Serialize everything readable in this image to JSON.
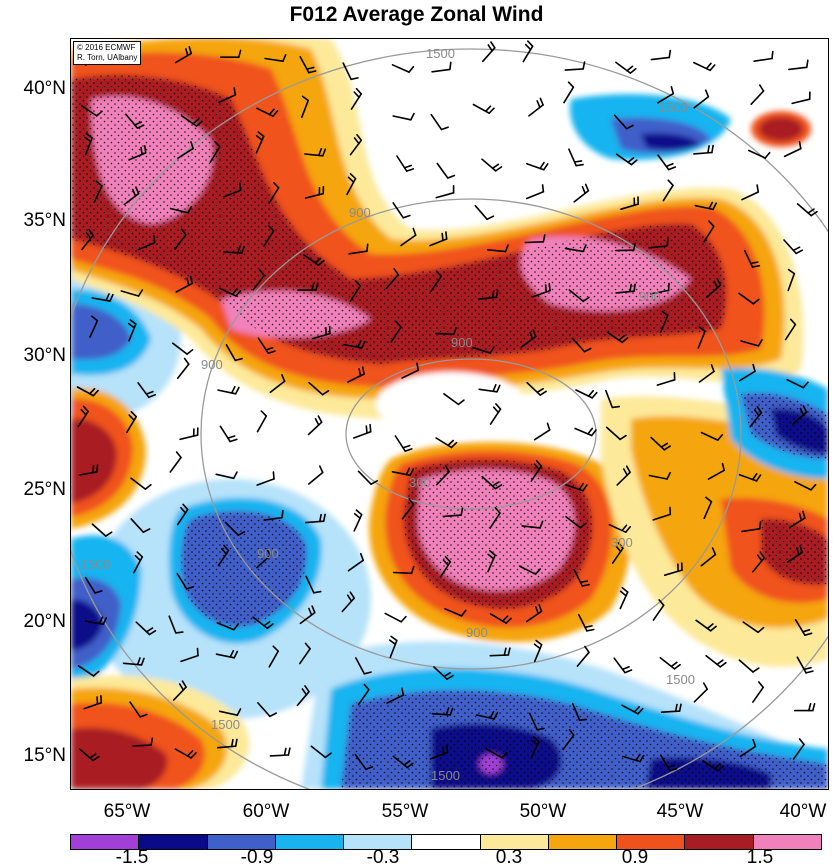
{
  "title": "F012 Average Zonal Wind",
  "credit": {
    "line1": "© 2016 ECMWF",
    "line2": "R. Torn, UAlbany"
  },
  "lat_labels": [
    "40°N",
    "35°N",
    "30°N",
    "25°N",
    "20°N",
    "15°N"
  ],
  "lon_labels": [
    "65°W",
    "60°W",
    "55°W",
    "50°W",
    "45°W",
    "40°W"
  ],
  "colorbar": {
    "colors": [
      "#a23fd6",
      "#0b0b8a",
      "#3f5fc9",
      "#19b4f0",
      "#b6e2fa",
      "#ffffff",
      "#fde99a",
      "#f5a50e",
      "#f0521e",
      "#a81c24",
      "#f081ba"
    ],
    "labels": [
      "-1.5",
      "-0.9",
      "-0.3",
      "0.3",
      "0.9",
      "1.5"
    ]
  },
  "contour_labels": [
    "1500",
    "1500",
    "900",
    "900",
    "900",
    "900",
    "300",
    "300",
    "900",
    "900",
    "1500",
    "1500",
    "1500",
    "1500"
  ],
  "chart_data": {
    "type": "heatmap",
    "title": "F012 Average Zonal Wind",
    "x_range_deg_w": [
      67,
      40
    ],
    "y_range_deg_n": [
      14,
      41
    ],
    "x_ticks": [
      "65°W",
      "60°W",
      "55°W",
      "50°W",
      "45°W",
      "40°W"
    ],
    "y_ticks": [
      "40°N",
      "35°N",
      "30°N",
      "25°N",
      "20°N",
      "15°N"
    ],
    "color_levels": [
      -1.5,
      -0.9,
      -0.3,
      0.3,
      0.9,
      1.5
    ],
    "range_rings_labels": [
      300,
      900,
      1500
    ],
    "overlays": [
      "wind barbs",
      "stippling",
      "range rings"
    ]
  }
}
